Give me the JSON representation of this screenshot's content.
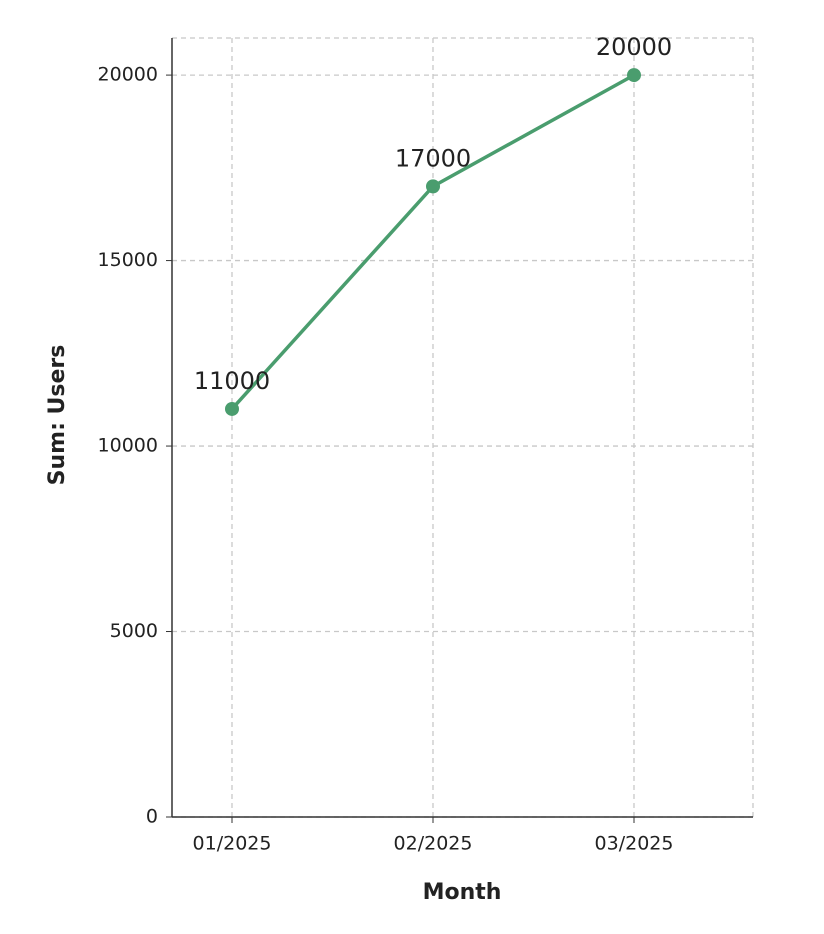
{
  "chart_data": {
    "type": "line",
    "categories": [
      "01/2025",
      "02/2025",
      "03/2025"
    ],
    "series": [
      {
        "name": "Users",
        "color": "#4a9d6e",
        "values": [
          11000,
          17000,
          20000
        ]
      }
    ],
    "x_label": "Month",
    "y_label": "Sum: Users",
    "ylim": [
      0,
      21000
    ],
    "yticks": [
      0,
      5000,
      10000,
      15000,
      20000
    ],
    "grid": true
  }
}
